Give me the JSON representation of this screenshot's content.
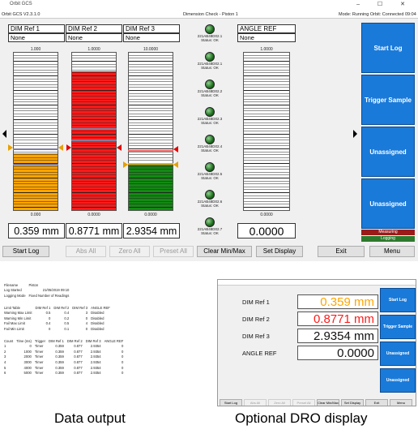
{
  "window": {
    "title": "Orbit GCS",
    "controls": "–  ☐  ✕"
  },
  "status": {
    "version": "Orbit GCS V2.3.1.0",
    "center": "Dimension Check - Piston 1",
    "mode": "Mode: Running  Orbit: Connected",
    "time": "09:04"
  },
  "dims": [
    {
      "header": "DIM Ref 1",
      "sub": "None",
      "scale_top": "1.000",
      "scale_bottom": "0.000",
      "readout": "0.359 mm",
      "color": "#ffa500",
      "level": 0.36
    },
    {
      "header": "DIM Ref 2",
      "sub": "None",
      "scale_top": "1.0000",
      "scale_bottom": "0.0000",
      "readout": "0.8771 mm",
      "color": "#ff1a1a",
      "level": 0.88
    },
    {
      "header": "DIM Ref 3",
      "sub": "None",
      "scale_top": "10.0000",
      "scale_bottom": "0.0000",
      "readout": "2.9354 mm",
      "color": "#138a13",
      "level": 0.29
    }
  ],
  "angle": {
    "header": "ANGLE REF",
    "sub": "None",
    "scale_top": "1.0000",
    "scale_bottom": "0.0000",
    "readout": "0.0000"
  },
  "probes": [
    {
      "id": "221AB48D02.1",
      "status": "Status: OK"
    },
    {
      "id": "221AB48D02.1",
      "status": "Status: OK"
    },
    {
      "id": "221AB48D02.2",
      "status": "Status: OK"
    },
    {
      "id": "221AB48D02.3",
      "status": "Status: OK"
    },
    {
      "id": "221AB48D02.4",
      "status": "Status: OK"
    },
    {
      "id": "221AB48D02.5",
      "status": "Status: OK"
    },
    {
      "id": "221AB48D02.6",
      "status": "Status: OK"
    },
    {
      "id": "221AB48D02.7",
      "status": "Status: OK"
    }
  ],
  "side_buttons": [
    "Start Log",
    "Trigger Sample",
    "Unassigned",
    "Unassigned"
  ],
  "side_status": {
    "measuring": "Measuring",
    "logging": "Logging"
  },
  "bottom_buttons": [
    "Start Log",
    "Abs All",
    "Zero All",
    "Preset All",
    "Clear Min/Max",
    "Set Display",
    "Exit",
    "Menu"
  ],
  "captions": {
    "left": "Data output",
    "right": "Optional DRO display"
  },
  "sheet": {
    "info": [
      [
        "Filename",
        "Piston"
      ],
      [
        "Log Started",
        "21/05/2019 09:10"
      ],
      [
        "Logging Mode",
        "Fixed Number of Readings"
      ]
    ],
    "limits_header": [
      "Limit Table",
      "DIM Ref 1",
      "DIM Ref 2",
      "DIM Ref 3",
      "ANGLE REF"
    ],
    "limits": [
      [
        "Warning Max Limit",
        "0.5",
        "0.4",
        "3",
        "Disabled"
      ],
      [
        "Warning Min Limit",
        "0",
        "0.2",
        "0",
        "Disabled"
      ],
      [
        "Fail Max Limit",
        "0.4",
        "0.5",
        "4",
        "Disabled"
      ],
      [
        "Fail Min Limit",
        "0",
        "0.1",
        "0",
        "Disabled"
      ]
    ],
    "data_header": [
      "Count",
      "Time (ms)",
      "Trigger",
      "DIM Ref 1",
      "DIM Ref 2",
      "DIM Ref 3",
      "ANGLE REF"
    ],
    "data": [
      [
        "1",
        "0",
        "Timer",
        "0.359",
        "0.877",
        "2.9354",
        "0"
      ],
      [
        "2",
        "1000",
        "Timer",
        "0.359",
        "0.877",
        "2.9354",
        "0"
      ],
      [
        "3",
        "2000",
        "Timer",
        "0.359",
        "0.877",
        "2.9354",
        "0"
      ],
      [
        "4",
        "3000",
        "Timer",
        "0.359",
        "0.877",
        "2.9354",
        "0"
      ],
      [
        "5",
        "4000",
        "Timer",
        "0.359",
        "0.877",
        "2.9354",
        "0"
      ],
      [
        "6",
        "5000",
        "Timer",
        "0.359",
        "0.877",
        "2.9354",
        "0"
      ]
    ]
  },
  "dro": {
    "rows": [
      {
        "label": "DIM Ref 1",
        "value": "0.359 mm",
        "color": "#ffa500"
      },
      {
        "label": "DIM Ref 2",
        "value": "0.8771 mm",
        "color": "#ff1a1a"
      },
      {
        "label": "DIM Ref 3",
        "value": "2.9354 mm",
        "color": "#111111"
      },
      {
        "label": "ANGLE REF",
        "value": "0.0000",
        "color": "#111111"
      }
    ],
    "side": [
      "Start Log",
      "Trigger Sample",
      "Unassigned",
      "Unassigned"
    ],
    "bottom": [
      "Start Log",
      "Abs All",
      "Zero All",
      "Preset All",
      "Clear Min/Max",
      "Set Display",
      "Exit",
      "Menu"
    ]
  }
}
